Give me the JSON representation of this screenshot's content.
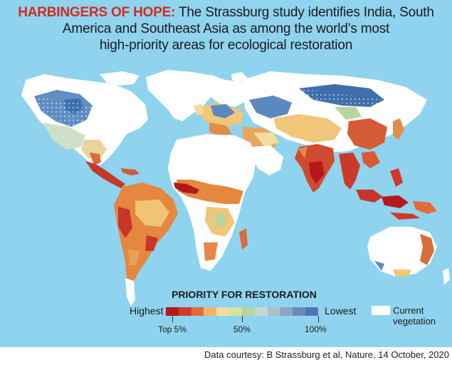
{
  "headline": {
    "kicker": "HARBINGERS OF HOPE:",
    "line1_rest": "The Strassburg study identifies India, South",
    "line2": "America and Southeast Asia as among the world’s most",
    "line3": "high-priority areas for ecological restoration"
  },
  "legend": {
    "title": "PRIORITY FOR RESTORATION",
    "high_label": "Highest",
    "low_label": "Lowest",
    "colors": [
      "#b5171c",
      "#d2372a",
      "#e56a3b",
      "#f0b368",
      "#f4dd9e",
      "#d6e3a5",
      "#b6d79b",
      "#c6d8cf",
      "#a9c0c8",
      "#8ea4c0",
      "#6d89bb",
      "#4f74b6"
    ],
    "ticks": [
      {
        "label": "Top 5%",
        "frac": 0.04
      },
      {
        "label": "50%",
        "frac": 0.5
      },
      {
        "label": "100%",
        "frac": 1.0
      }
    ],
    "vegetation_label_1": "Current",
    "vegetation_label_2": "vegetation"
  },
  "source": "Data courtesy: B Strassburg et al, Nature, 14 October, 2020"
}
